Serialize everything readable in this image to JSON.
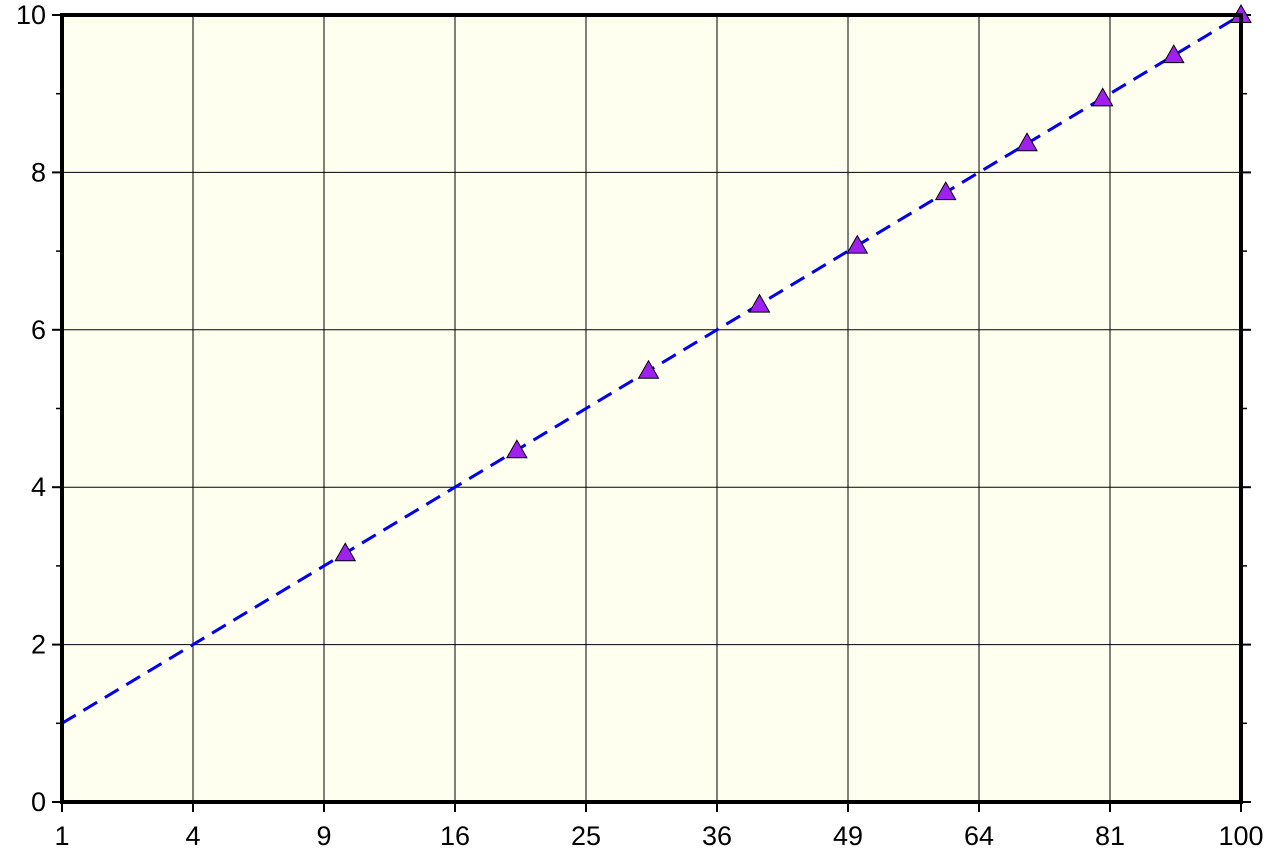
{
  "chart_data": {
    "type": "scatter",
    "title": "",
    "xlabel": "",
    "ylabel": "",
    "x_scale": "sqrt",
    "xlim": [
      1,
      100
    ],
    "ylim": [
      0,
      10
    ],
    "x_ticks": [
      1,
      4,
      9,
      16,
      25,
      36,
      49,
      64,
      81,
      100
    ],
    "x_tick_labels": [
      "1",
      "4",
      "9",
      "16",
      "25",
      "36",
      "49",
      "64",
      "81",
      "100"
    ],
    "y_ticks": [
      0,
      2,
      4,
      6,
      8,
      10
    ],
    "y_tick_labels": [
      "0",
      "2",
      "4",
      "6",
      "8",
      "10"
    ],
    "grid": true,
    "series": [
      {
        "kind": "markers",
        "marker": "triangle",
        "color": "#a020f0",
        "x": [
          10,
          20,
          30,
          40,
          50,
          60,
          70,
          80,
          90,
          100
        ],
        "y": [
          3.16,
          4.47,
          5.48,
          6.32,
          7.07,
          7.75,
          8.37,
          8.94,
          9.49,
          10
        ]
      },
      {
        "kind": "line",
        "style": "dashed",
        "color": "#0000ee",
        "x": [
          1,
          100
        ],
        "y": [
          1,
          10
        ]
      }
    ],
    "colors": {
      "plot_background": "#fffff0",
      "grid": "#000000",
      "frame": "#000000"
    }
  }
}
